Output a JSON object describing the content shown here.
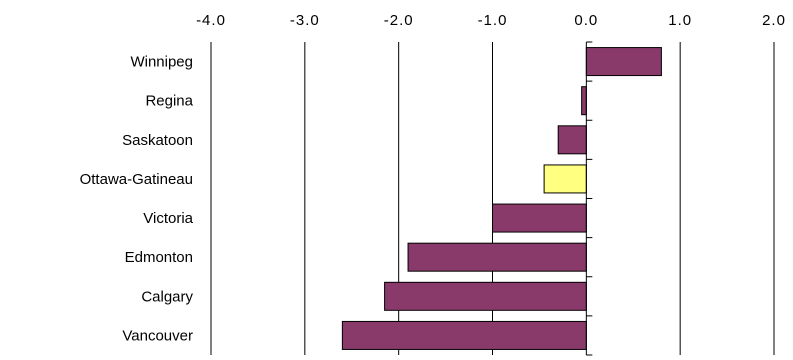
{
  "chart_data": {
    "type": "bar",
    "orientation": "horizontal",
    "title": "",
    "xlabel": "",
    "ylabel": "",
    "xlim": [
      -4.0,
      2.0
    ],
    "x_ticks": [
      "-4.0",
      "-3.0",
      "-2.0",
      "-1.0",
      "0.0",
      "1.0",
      "2.0"
    ],
    "x_tick_values": [
      -4.0,
      -3.0,
      -2.0,
      -1.0,
      0.0,
      1.0,
      2.0
    ],
    "x_axis_position": "top",
    "grid": "vertical",
    "legend": "none",
    "categories": [
      "Winnipeg",
      "Regina",
      "Saskatoon",
      "Ottawa-Gatineau",
      "Victoria",
      "Edmonton",
      "Calgary",
      "Vancouver"
    ],
    "values": [
      0.8,
      -0.05,
      -0.3,
      -0.45,
      -1.0,
      -1.9,
      -2.15,
      -2.6
    ],
    "bar_colors": [
      "#893a6a",
      "#893a6a",
      "#893a6a",
      "#ffff80",
      "#893a6a",
      "#893a6a",
      "#893a6a",
      "#893a6a"
    ],
    "highlight_color": "#ffff80",
    "bar_color": "#893a6a"
  }
}
